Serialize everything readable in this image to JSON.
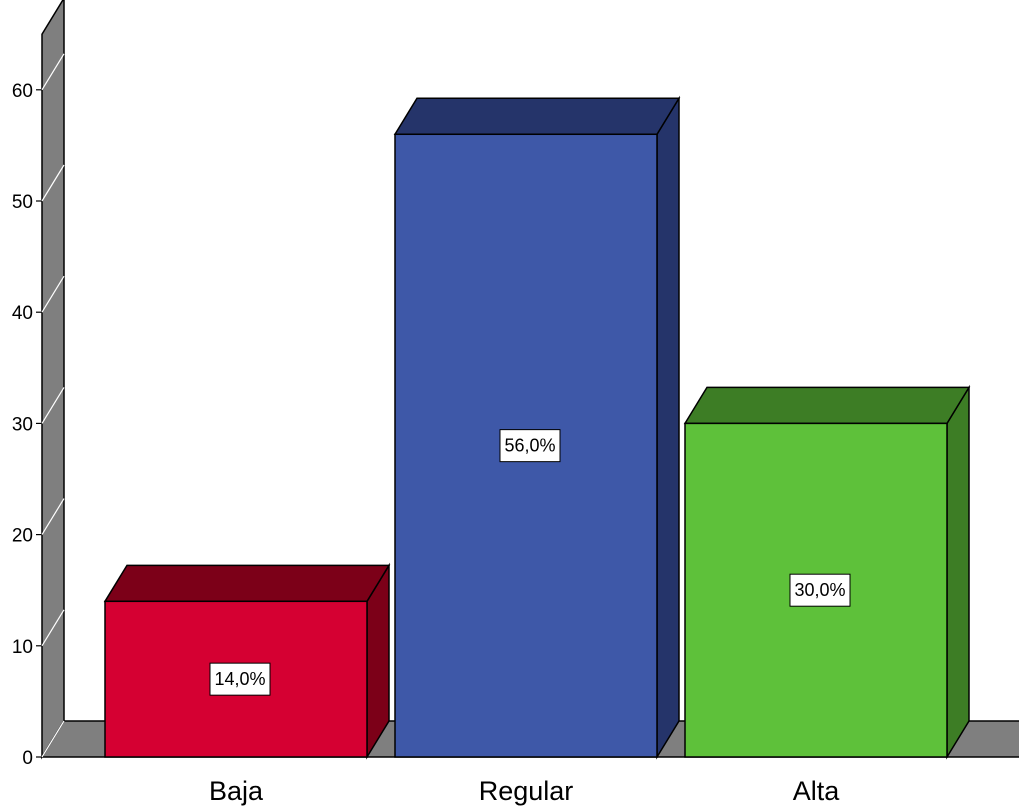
{
  "chart_data": {
    "type": "bar",
    "style": "3d",
    "categories": [
      "Baja",
      "Regular",
      "Alta"
    ],
    "values": [
      14,
      56,
      30
    ],
    "data_labels": [
      "14,0%",
      "56,0%",
      "30,0%"
    ],
    "colors": [
      "#d50032",
      "#3e58a8",
      "#5ec13a"
    ],
    "side_colors": [
      "#7c0018",
      "#25346a",
      "#3d7d25"
    ],
    "top_colors": [
      "#7c0018",
      "#25346a",
      "#3d7d25"
    ],
    "wall_color": "#7f7f7f",
    "ylim": [
      0,
      65
    ],
    "yticks": [
      0,
      10,
      20,
      30,
      40,
      50,
      60
    ],
    "title": "",
    "xlabel": "",
    "ylabel": "",
    "grid": false,
    "legend": "none"
  }
}
